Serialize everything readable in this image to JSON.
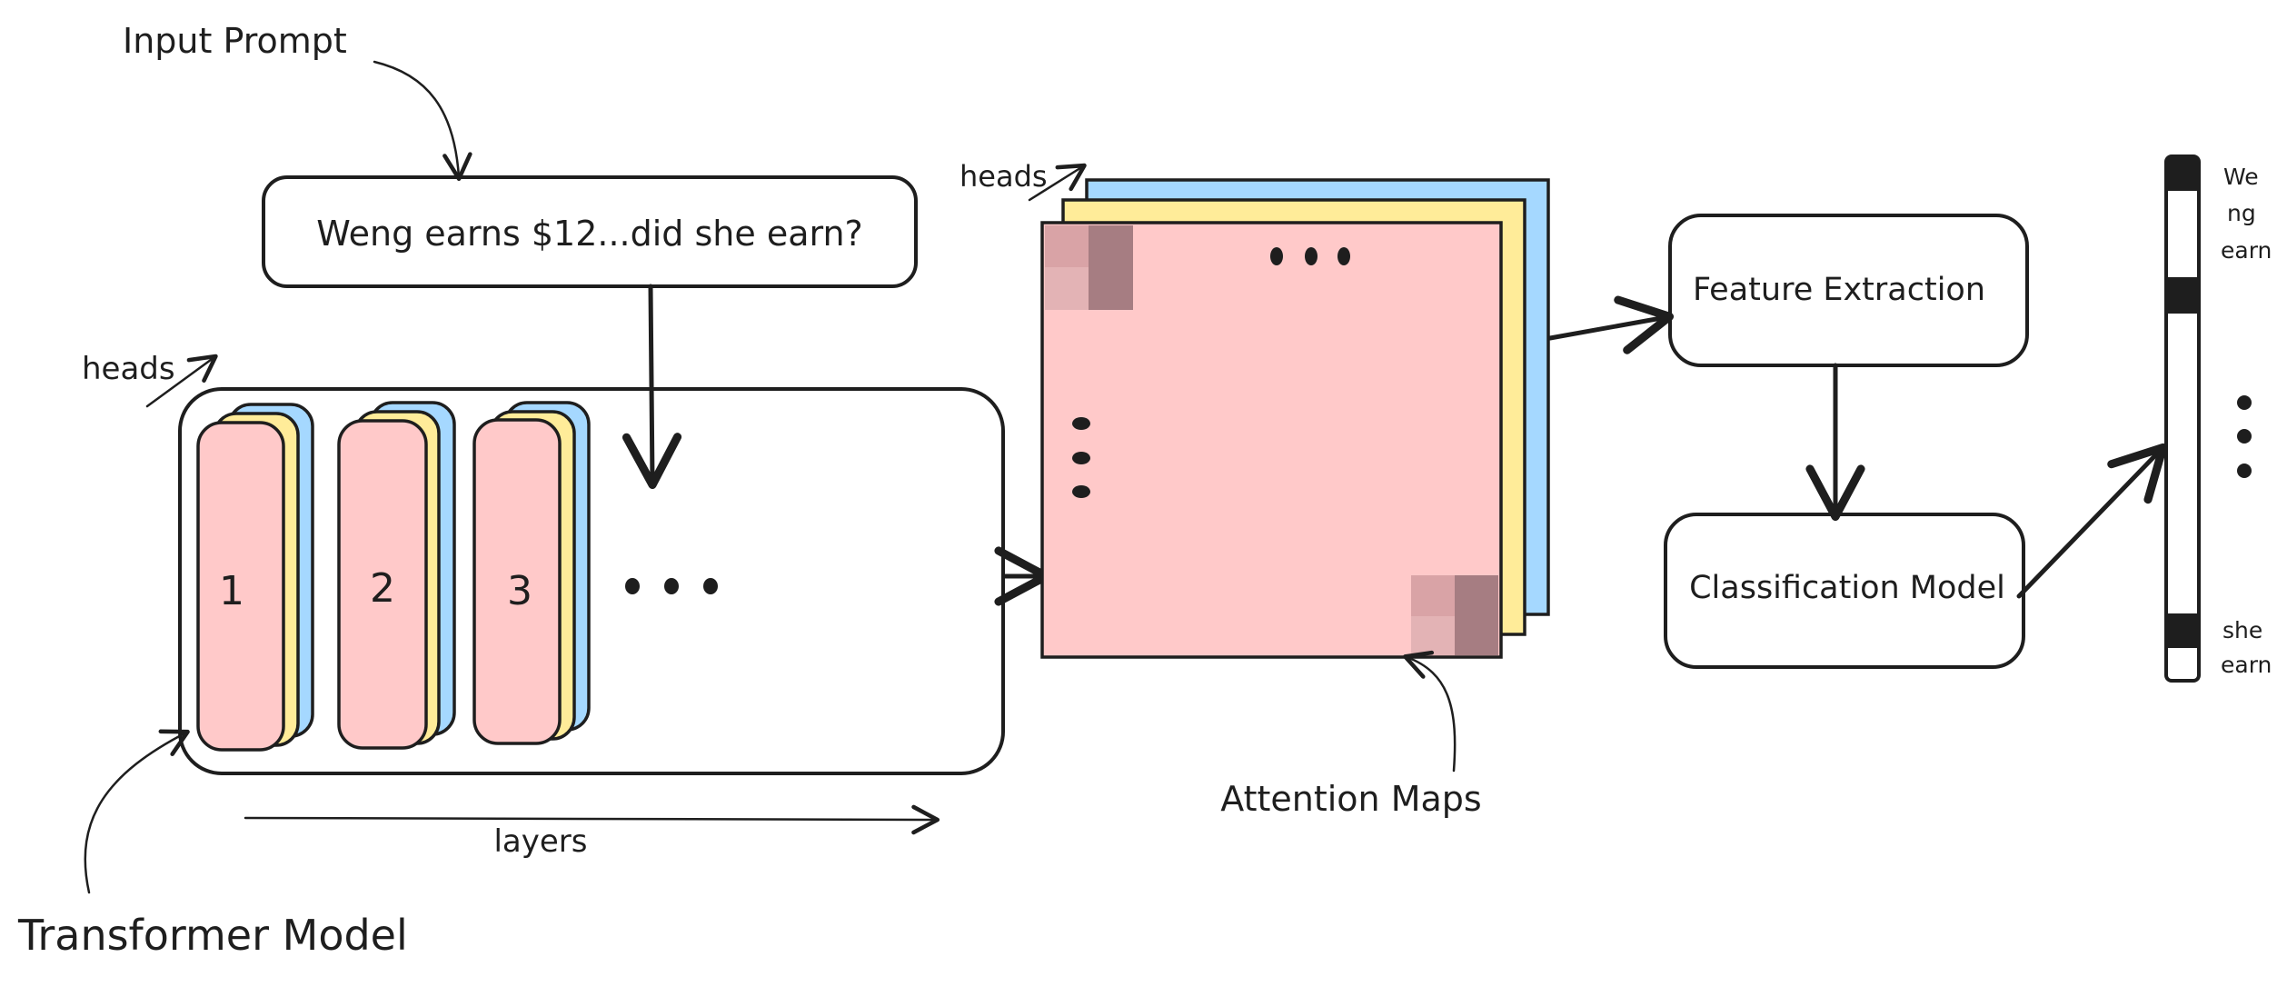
{
  "labels": {
    "input_prompt": "Input Prompt",
    "prompt_text": "Weng earns $12...did she earn?",
    "heads_left": "heads",
    "heads_right": "heads",
    "layers": "layers",
    "transformer_model": "Transformer Model",
    "attention_maps": "Attention Maps",
    "feature_extraction": "Feature Extraction",
    "classification_model": "Classification Model"
  },
  "layer_numbers": [
    "1",
    "2",
    "3"
  ],
  "ellipsis": "• • •",
  "token_labels": {
    "top": [
      "We",
      "ng",
      "earn"
    ],
    "bottom": [
      "she",
      "earn"
    ]
  },
  "colors": {
    "head_front": "#ffc9c9",
    "head_middle": "#ffec99",
    "head_back": "#a5d8ff",
    "stroke": "#1e1e1e",
    "attention_cell_light": "#d9a3a6",
    "attention_cell_dark": "#a67d82"
  },
  "icons": {
    "arrows": "hand-drawn-arrow",
    "token_bar": "vertical-token-bar"
  }
}
